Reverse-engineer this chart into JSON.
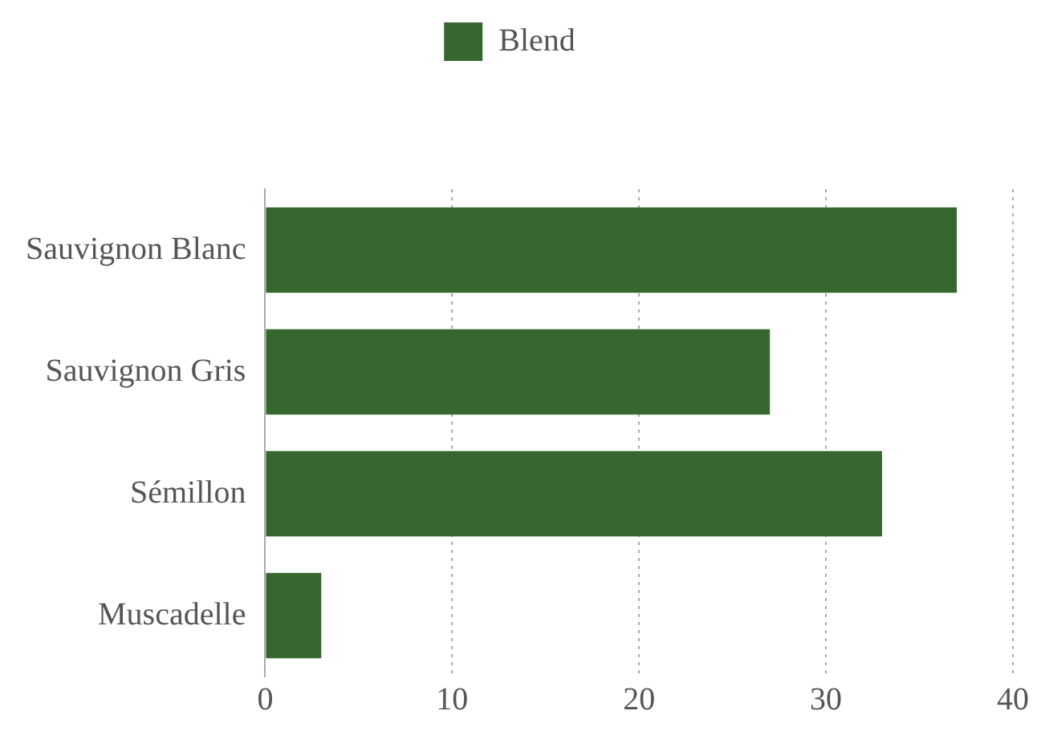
{
  "chart_data": {
    "type": "bar",
    "orientation": "horizontal",
    "categories": [
      "Sauvignon Blanc",
      "Sauvignon Gris",
      "Sémillon",
      "Muscadelle"
    ],
    "series": [
      {
        "name": "Blend",
        "color": "#35672e",
        "values": [
          37,
          27,
          33,
          3
        ]
      }
    ],
    "xlim": [
      0,
      40
    ],
    "xticks": [
      0,
      10,
      20,
      30,
      40
    ],
    "grid": "x",
    "legend": "top"
  }
}
